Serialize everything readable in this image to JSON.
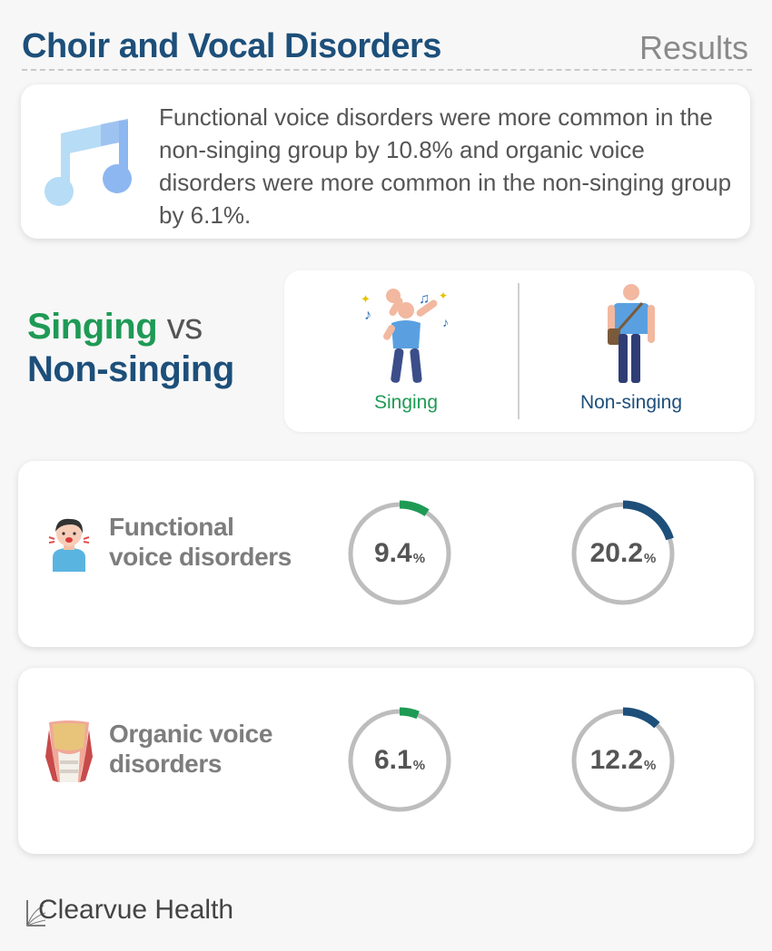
{
  "header": {
    "title": "Choir and Vocal Disorders",
    "section": "Results"
  },
  "intro": {
    "icon": "music-note-icon",
    "text": "Functional voice disorders were more common in the non-singing group by 10.8% and organic voice disorders were more common in the non-singing group by 6.1%."
  },
  "comparison": {
    "group_a": "Singing",
    "vs": "vs",
    "group_b": "Non-singing",
    "group_a_label": "Singing",
    "group_b_label": "Non-singing",
    "group_a_icon": "dancing-person-icon",
    "group_b_icon": "standing-person-icon"
  },
  "stats": [
    {
      "label_line1": "Functional",
      "label_line2": "voice disorders",
      "icon": "sick-person-icon",
      "singing": {
        "value": "9.4",
        "unit": "%",
        "fraction": 0.094
      },
      "non_singing": {
        "value": "20.2",
        "unit": "%",
        "fraction": 0.202
      }
    },
    {
      "label_line1": "Organic voice",
      "label_line2": "disorders",
      "icon": "throat-icon",
      "singing": {
        "value": "6.1",
        "unit": "%",
        "fraction": 0.061
      },
      "non_singing": {
        "value": "12.2",
        "unit": "%",
        "fraction": 0.122
      }
    }
  ],
  "colors": {
    "singing": "#1f9a55",
    "non_singing": "#1d4f7a",
    "ring_track": "#bdbdbd"
  },
  "footer": {
    "brand": "Clearvue Health",
    "logo": "clearvue-logo-icon"
  }
}
